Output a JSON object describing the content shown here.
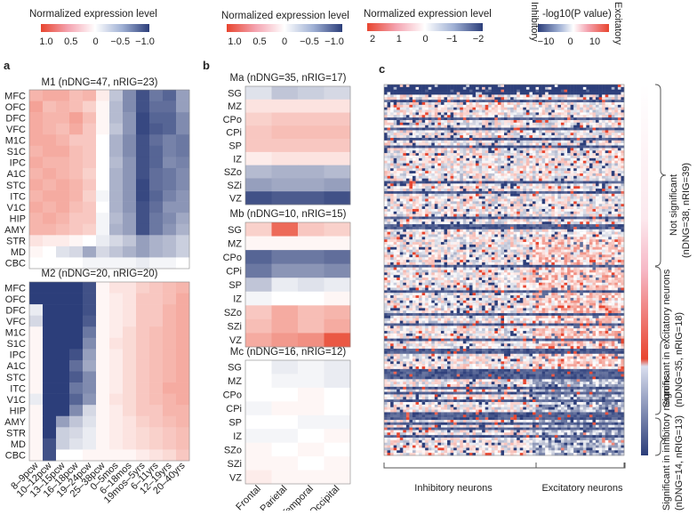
{
  "colors": {
    "pos": "#e8452f",
    "mid": "#ffffff",
    "neg": "#2c3e7a"
  },
  "legends": [
    {
      "title": "Normalized expression level",
      "ticks": [
        "1.0",
        "0.5",
        "0",
        "−0.5",
        "−1.0"
      ]
    },
    {
      "title": "Normalized expression level",
      "ticks": [
        "1.0",
        "0.5",
        "0",
        "−0.5",
        "−1.0"
      ]
    },
    {
      "title": "Normalized expression level",
      "ticks": [
        "2",
        "1",
        "0",
        "−1",
        "−2"
      ]
    },
    {
      "title": "-log10(P value)",
      "ticks": [
        "−10",
        "0",
        "10"
      ],
      "left_label": "Inhibitory",
      "right_label": "Excitatory"
    }
  ],
  "panels": {
    "a": "a",
    "b": "b",
    "c": "c"
  },
  "chart_data": [
    {
      "type": "heatmap",
      "panel": "a",
      "title": "M1 (nDNG=47, nRIG=23)",
      "rows": [
        "MFC",
        "OFC",
        "DFC",
        "VFC",
        "M1C",
        "S1C",
        "IPC",
        "A1C",
        "STC",
        "ITC",
        "V1C",
        "HIP",
        "AMY",
        "STR",
        "MD",
        "CBC"
      ],
      "cols": [
        "8–9pcw",
        "10–12pcw",
        "13–15pcw",
        "16–18pcw",
        "19–24pcw",
        "25–38pcw",
        "0–5mos",
        "6–18mos",
        "19mos–5yrs",
        "6–11yrs",
        "12–19yrs",
        "20–40yrs"
      ],
      "values": [
        [
          0.4,
          0.45,
          0.45,
          0.35,
          0.4,
          0.1,
          -0.3,
          -0.6,
          -0.9,
          -0.7,
          -0.8,
          -0.5
        ],
        [
          0.5,
          0.35,
          0.4,
          0.35,
          0.25,
          0.05,
          -0.35,
          -0.6,
          -0.9,
          -0.75,
          -0.75,
          -0.5
        ],
        [
          0.45,
          0.4,
          0.4,
          0.5,
          0.35,
          0.05,
          -0.35,
          -0.55,
          -0.95,
          -0.8,
          -0.8,
          -0.6
        ],
        [
          0.45,
          0.4,
          0.35,
          0.45,
          0.3,
          0.05,
          -0.3,
          -0.55,
          -0.95,
          -0.85,
          -0.8,
          -0.6
        ],
        [
          0.45,
          0.45,
          0.4,
          0.3,
          0.3,
          0.0,
          -0.4,
          -0.6,
          -0.9,
          -0.75,
          -0.65,
          -0.7
        ],
        [
          0.4,
          0.45,
          0.45,
          0.35,
          0.3,
          0.0,
          -0.4,
          -0.6,
          -0.9,
          -0.8,
          -0.65,
          -0.7
        ],
        [
          0.45,
          0.4,
          0.4,
          0.35,
          0.3,
          0.0,
          -0.35,
          -0.55,
          -0.9,
          -0.8,
          -0.6,
          -0.65
        ],
        [
          0.4,
          0.45,
          0.4,
          0.35,
          0.25,
          0.0,
          -0.4,
          -0.55,
          -0.9,
          -0.75,
          -0.7,
          -0.6
        ],
        [
          0.45,
          0.4,
          0.45,
          0.4,
          0.3,
          0.0,
          -0.4,
          -0.55,
          -0.95,
          -0.75,
          -0.7,
          -0.6
        ],
        [
          0.4,
          0.45,
          0.45,
          0.4,
          0.25,
          -0.05,
          -0.4,
          -0.55,
          -0.95,
          -0.8,
          -0.65,
          -0.55
        ],
        [
          0.45,
          0.4,
          0.45,
          0.35,
          0.3,
          0.0,
          -0.4,
          -0.55,
          -0.9,
          -0.75,
          -0.55,
          -0.55
        ],
        [
          0.4,
          0.45,
          0.4,
          0.3,
          0.3,
          -0.05,
          -0.35,
          -0.5,
          -0.9,
          -0.7,
          -0.6,
          -0.45
        ],
        [
          0.4,
          0.4,
          0.35,
          0.3,
          0.25,
          -0.05,
          -0.4,
          -0.5,
          -0.9,
          -0.7,
          -0.55,
          -0.4
        ],
        [
          0.15,
          0.1,
          0.1,
          0.05,
          0.0,
          -0.1,
          -0.2,
          -0.3,
          -0.5,
          -0.4,
          -0.35,
          -0.25
        ],
        [
          0.05,
          0.0,
          -0.15,
          -0.2,
          -0.45,
          -0.2,
          -0.3,
          -0.4,
          -0.5,
          -0.4,
          -0.35,
          -0.25
        ],
        [
          0.0,
          0.0,
          0.0,
          0.0,
          -0.05,
          -0.05,
          -0.05,
          -0.05,
          -0.1,
          -0.05,
          -0.05,
          0.0
        ]
      ],
      "range": [
        -1,
        1
      ]
    },
    {
      "type": "heatmap",
      "panel": "a",
      "title": "M2 (nDNG=20, nRIG=20)",
      "rows": [
        "MFC",
        "OFC",
        "DFC",
        "VFC",
        "M1C",
        "S1C",
        "IPC",
        "A1C",
        "STC",
        "ITC",
        "V1C",
        "HIP",
        "AMY",
        "STR",
        "MD",
        "CBC"
      ],
      "cols": [
        "8–9pcw",
        "10–12pcw",
        "13–15pcw",
        "16–18pcw",
        "19–24pcw",
        "25–38pcw",
        "0–5mos",
        "6–18mos",
        "19mos–5yrs",
        "6–11yrs",
        "12–19yrs",
        "20–40yrs"
      ],
      "values": [
        [
          -1,
          -1,
          -1,
          -1,
          -0.9,
          0.05,
          0.15,
          0.15,
          0.25,
          0.3,
          0.35,
          0.4
        ],
        [
          -1,
          -1,
          -1,
          -1,
          -0.9,
          0.05,
          0.1,
          0.15,
          0.3,
          0.3,
          0.35,
          0.45
        ],
        [
          -0.1,
          -1,
          -1,
          -1,
          -0.9,
          0.05,
          0.1,
          0.15,
          0.3,
          0.3,
          0.4,
          0.45
        ],
        [
          -0.2,
          -1,
          -1,
          -1,
          -0.85,
          0.05,
          0.1,
          0.15,
          0.3,
          0.3,
          0.4,
          0.45
        ],
        [
          0.05,
          -1,
          -1,
          -1,
          -0.7,
          0.05,
          0.1,
          0.2,
          0.3,
          0.35,
          0.4,
          0.45
        ],
        [
          0.05,
          -1,
          -1,
          -1,
          -0.6,
          0.05,
          0.15,
          0.2,
          0.3,
          0.35,
          0.4,
          0.45
        ],
        [
          0.05,
          -1,
          -1,
          -0.9,
          -0.5,
          0.05,
          0.1,
          0.2,
          0.3,
          0.35,
          0.4,
          0.45
        ],
        [
          0.05,
          -1,
          -1,
          -0.75,
          -0.45,
          0.05,
          0.1,
          0.2,
          0.3,
          0.35,
          0.4,
          0.45
        ],
        [
          0.05,
          -1,
          -1,
          -0.85,
          -0.6,
          0.05,
          0.1,
          0.2,
          0.3,
          0.35,
          0.4,
          0.45
        ],
        [
          0.05,
          -1,
          -1,
          -0.7,
          -0.6,
          0.05,
          0.1,
          0.2,
          0.3,
          0.35,
          0.45,
          0.45
        ],
        [
          -0.1,
          -1,
          -1,
          -0.8,
          -0.55,
          0.05,
          0.15,
          0.2,
          0.3,
          0.35,
          0.4,
          0.45
        ],
        [
          0.05,
          -1,
          -1,
          -0.6,
          -0.2,
          0.05,
          0.1,
          0.2,
          0.3,
          0.3,
          0.4,
          0.4
        ],
        [
          0.05,
          -1,
          -0.5,
          -0.3,
          -0.15,
          0.05,
          0.1,
          0.15,
          0.25,
          0.3,
          0.35,
          0.4
        ],
        [
          0.05,
          -1,
          -0.25,
          -0.2,
          -0.1,
          0.05,
          0.1,
          0.15,
          0.2,
          0.25,
          0.3,
          0.35
        ],
        [
          0.05,
          -0.9,
          -0.25,
          -0.15,
          -0.1,
          0.05,
          0.1,
          0.15,
          0.2,
          0.25,
          0.3,
          0.35
        ],
        [
          0.05,
          -0.9,
          0.0,
          0.0,
          0.05,
          0.05,
          0.05,
          0.05,
          0.1,
          0.15,
          0.2,
          0.3
        ]
      ],
      "range": [
        -1,
        1
      ]
    },
    {
      "type": "heatmap",
      "panel": "b",
      "title": "Ma (nDNG=35, nRIG=17)",
      "rows": [
        "SG",
        "MZ",
        "CPo",
        "CPi",
        "SP",
        "IZ",
        "SZo",
        "SZi",
        "VZ"
      ],
      "cols": [
        "Frontal",
        "Parietal",
        "Temporal",
        "Occipital"
      ],
      "values": [
        [
          -0.15,
          -0.3,
          -0.25,
          -0.2
        ],
        [
          0.15,
          0.15,
          0.15,
          0.15
        ],
        [
          0.25,
          0.3,
          0.3,
          0.3
        ],
        [
          0.3,
          0.35,
          0.35,
          0.35
        ],
        [
          0.3,
          0.3,
          0.3,
          0.3
        ],
        [
          0.1,
          0.15,
          0.15,
          0.15
        ],
        [
          -0.35,
          -0.4,
          -0.4,
          -0.35
        ],
        [
          -0.5,
          -0.45,
          -0.45,
          -0.5
        ],
        [
          -0.9,
          -0.85,
          -0.85,
          -0.9
        ]
      ],
      "range": [
        -1,
        1
      ]
    },
    {
      "type": "heatmap",
      "panel": "b",
      "title": "Mb (nDNG=10, nRIG=15)",
      "rows": [
        "SG",
        "MZ",
        "CPo",
        "CPi",
        "SP",
        "IZ",
        "SZo",
        "SZi",
        "VZ"
      ],
      "cols": [
        "Frontal",
        "Parietal",
        "Temporal",
        "Occipital"
      ],
      "values": [
        [
          0.25,
          0.8,
          0.3,
          0.25
        ],
        [
          0.05,
          0.05,
          0.05,
          0.05
        ],
        [
          -0.8,
          -0.7,
          -0.7,
          -0.75
        ],
        [
          -0.7,
          -0.55,
          -0.55,
          -0.6
        ],
        [
          -0.3,
          -0.1,
          -0.15,
          -0.1
        ],
        [
          -0.05,
          0.0,
          0.0,
          0.05
        ],
        [
          0.3,
          0.45,
          0.35,
          0.4
        ],
        [
          0.35,
          0.45,
          0.35,
          0.45
        ],
        [
          0.45,
          0.55,
          0.6,
          0.9
        ]
      ],
      "range": [
        -1,
        1
      ]
    },
    {
      "type": "heatmap",
      "panel": "b",
      "title": "Mc (nDNG=16, nRIG=12)",
      "rows": [
        "SG",
        "MZ",
        "CPo",
        "CPi",
        "SP",
        "IZ",
        "SZo",
        "SZi",
        "VZ"
      ],
      "cols": [
        "Frontal",
        "Parietal",
        "Temporal",
        "Occipital"
      ],
      "values": [
        [
          0.0,
          -0.1,
          -0.05,
          -0.1
        ],
        [
          0.0,
          -0.05,
          -0.05,
          -0.1
        ],
        [
          0.0,
          0.0,
          0.05,
          0.0
        ],
        [
          -0.05,
          0.05,
          0.05,
          0.0
        ],
        [
          0.0,
          0.0,
          -0.05,
          -0.05
        ],
        [
          -0.05,
          -0.05,
          0.0,
          0.05
        ],
        [
          0.05,
          0.0,
          0.05,
          0.0
        ],
        [
          0.05,
          0.05,
          0.0,
          0.05
        ],
        [
          0.1,
          0.05,
          0.05,
          0.05
        ]
      ],
      "range": [
        -1,
        1
      ]
    },
    {
      "type": "heatmap",
      "panel": "c",
      "description_groups": [
        {
          "label": "Not significant",
          "sub": "(nDNG=38, nRIG=39)"
        },
        {
          "label": "Significant in excitatory neurons",
          "sub": "(nDNG=35, nRIG=18)"
        },
        {
          "label": "Significant in inhibitory neurons",
          "sub": "(nDNG=14, nRIG=13)"
        }
      ],
      "xlabels": [
        "Inhibitory neurons",
        "Excitatory neurons"
      ],
      "n_rows": 146,
      "n_cols": 76,
      "n_inhibitory_cols": 47,
      "range": [
        -2,
        2
      ],
      "seed": 7
    }
  ]
}
